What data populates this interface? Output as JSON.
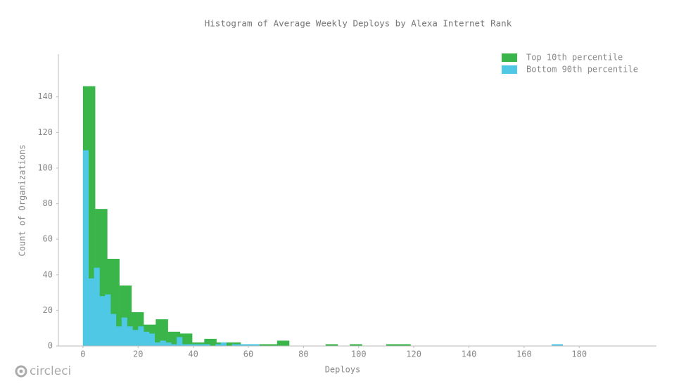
{
  "chart_data": {
    "type": "histogram",
    "title": "Histogram of Average Weekly Deploys by Alexa Internet Rank",
    "x_label": "Deploys",
    "y_label": "Count of Organizations",
    "xlim": [
      -8.9,
      208
    ],
    "ylim": [
      0,
      164
    ],
    "xticks": [
      0,
      20,
      40,
      60,
      80,
      100,
      120,
      140,
      160,
      180
    ],
    "yticks": [
      0,
      20,
      40,
      60,
      80,
      100,
      120,
      140
    ],
    "legend": "upper right",
    "series": [
      {
        "name": "Top 10th percentile",
        "color": "#39b54a",
        "bins": [
          0,
          4.4,
          8.8,
          13.2,
          17.6,
          22,
          26.4,
          30.8,
          35.2,
          39.6,
          44,
          48.4,
          52.8,
          57.2,
          61.6,
          66,
          70.4,
          74.8,
          79.2,
          83.6,
          88,
          92.4,
          96.8,
          101.2,
          105.6,
          110,
          114.4,
          118.8
        ],
        "values": [
          146,
          77,
          49,
          34,
          19,
          12,
          15,
          8,
          7,
          2,
          4,
          2,
          2,
          1,
          1,
          1,
          3,
          0,
          0,
          0,
          1,
          0,
          1,
          0,
          0,
          1,
          1
        ]
      },
      {
        "name": "Bottom 90th percentile",
        "color": "#4fc8e6",
        "bins": [
          0,
          2,
          4,
          6,
          8,
          10,
          12,
          14,
          16,
          18,
          20,
          22,
          24,
          26,
          28,
          30,
          32,
          34,
          36,
          38,
          40,
          42,
          44,
          46,
          48,
          50,
          52,
          54,
          56,
          58,
          60,
          62,
          64,
          66,
          68,
          70,
          72,
          74,
          76,
          78,
          80,
          82,
          84,
          86,
          88,
          90,
          92,
          94,
          96,
          98,
          100,
          102,
          104,
          106,
          108,
          110,
          112,
          114,
          116,
          118,
          120,
          122,
          124,
          126,
          128,
          130,
          132,
          134,
          136,
          138,
          140,
          142,
          144,
          146,
          148,
          150,
          152,
          154,
          156,
          158,
          160,
          162,
          164,
          166,
          168,
          170,
          172,
          174
        ],
        "values": [
          110,
          38,
          44,
          28,
          29,
          18,
          11,
          16,
          11,
          9,
          11,
          8,
          7,
          2,
          3,
          2,
          1,
          5,
          1,
          1,
          1,
          1,
          1,
          0,
          1,
          2,
          0,
          1,
          1,
          1,
          1,
          1,
          0,
          0,
          0,
          0,
          0,
          0,
          0,
          0,
          0,
          0,
          0,
          0,
          0,
          0,
          0,
          0,
          0,
          0,
          0,
          0,
          0,
          0,
          0,
          0,
          0,
          0,
          0,
          0,
          0,
          0,
          0,
          0,
          0,
          0,
          0,
          0,
          0,
          0,
          0,
          0,
          0,
          0,
          0,
          0,
          0,
          0,
          0,
          0,
          0,
          0,
          0,
          0,
          0,
          1,
          1
        ]
      }
    ]
  },
  "footer": {
    "logo": "circleci"
  }
}
